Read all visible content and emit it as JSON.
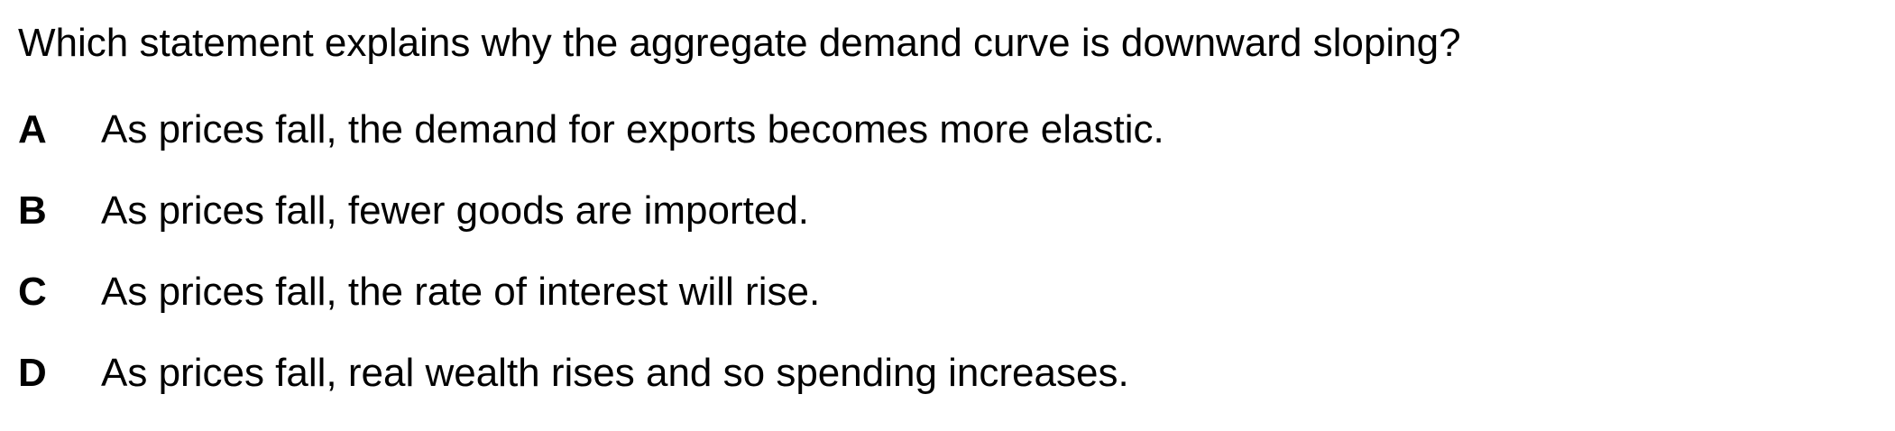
{
  "question": {
    "text": "Which statement explains why the aggregate demand curve is downward sloping?"
  },
  "options": [
    {
      "letter": "A",
      "text": "As prices fall, the demand for exports becomes more elastic."
    },
    {
      "letter": "B",
      "text": "As prices fall, fewer goods are imported."
    },
    {
      "letter": "C",
      "text": "As prices fall, the rate of interest will rise."
    },
    {
      "letter": "D",
      "text": "As prices fall, real wealth rises and so spending increases."
    }
  ]
}
